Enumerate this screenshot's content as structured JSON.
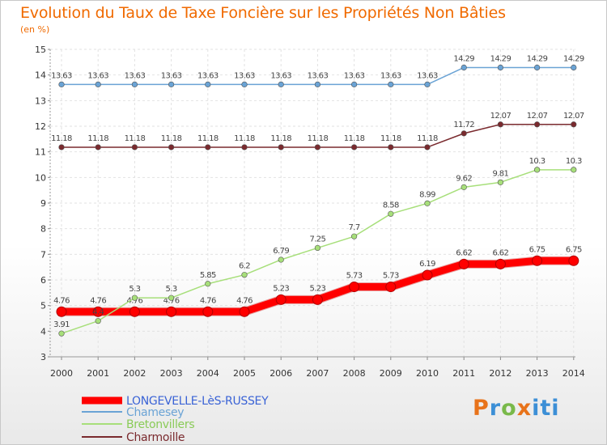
{
  "header": {
    "title": "Evolution du Taux de Taxe Foncière sur les Propriétés Non Bâties",
    "subtitle": "(en %)"
  },
  "logo": {
    "text": "Proxiti"
  },
  "chart_data": {
    "type": "line",
    "title": "Evolution du Taux de Taxe Foncière sur les Propriétés Non Bâties",
    "ylabel": "(en %)",
    "xlabel": "",
    "x": [
      2000,
      2001,
      2002,
      2003,
      2004,
      2005,
      2006,
      2007,
      2008,
      2009,
      2010,
      2011,
      2012,
      2013,
      2014
    ],
    "ylim": [
      3,
      15
    ],
    "yticks": [
      3,
      4,
      5,
      6,
      7,
      8,
      9,
      10,
      11,
      12,
      13,
      14,
      15
    ],
    "grid": true,
    "legend_position": "bottom-left",
    "series": [
      {
        "name": "LONGEVELLE-LèS-RUSSEY",
        "color": "#ff0000",
        "values": [
          4.76,
          4.76,
          4.76,
          4.76,
          4.76,
          4.76,
          5.23,
          5.23,
          5.73,
          5.73,
          6.19,
          6.62,
          6.62,
          6.75,
          6.75
        ],
        "labels": [
          "4.76",
          "4.76",
          "4.76",
          "4.76",
          "4.76",
          "4.76",
          "5.23",
          "5.23",
          "5.73",
          "5.73",
          "6.19",
          "6.62",
          "6.62",
          "6.75",
          "6.75"
        ]
      },
      {
        "name": "Chamesey",
        "color": "#6aa3d5",
        "values": [
          13.63,
          13.63,
          13.63,
          13.63,
          13.63,
          13.63,
          13.63,
          13.63,
          13.63,
          13.63,
          13.63,
          14.29,
          14.29,
          14.29,
          14.29
        ],
        "labels": [
          "13.63",
          "13.63",
          "13.63",
          "13.63",
          "13.63",
          "13.63",
          "13.63",
          "13.63",
          "13.63",
          "13.63",
          "13.63",
          "14.29",
          "14.29",
          "14.29",
          "14.29"
        ]
      },
      {
        "name": "Bretonvillers",
        "color": "#a7df7a",
        "values": [
          3.91,
          4.4,
          5.3,
          5.3,
          5.85,
          6.2,
          6.79,
          7.25,
          7.7,
          8.58,
          8.99,
          9.62,
          9.81,
          10.3,
          10.3
        ],
        "labels": [
          "3.91",
          "4.4",
          "5.3",
          "5.3",
          "5.85",
          "6.2",
          "6.79",
          "7.25",
          "7.7",
          "8.58",
          "8.99",
          "9.62",
          "9.81",
          "10.3",
          "10.3"
        ]
      },
      {
        "name": "Charmoille",
        "color": "#7a2a2e",
        "values": [
          11.18,
          11.18,
          11.18,
          11.18,
          11.18,
          11.18,
          11.18,
          11.18,
          11.18,
          11.18,
          11.18,
          11.72,
          12.07,
          12.07,
          12.07
        ],
        "labels": [
          "11.18",
          "11.18",
          "11.18",
          "11.18",
          "11.18",
          "11.18",
          "11.18",
          "11.18",
          "11.18",
          "11.18",
          "11.18",
          "11.72",
          "12.07",
          "12.07",
          "12.07"
        ]
      }
    ]
  }
}
